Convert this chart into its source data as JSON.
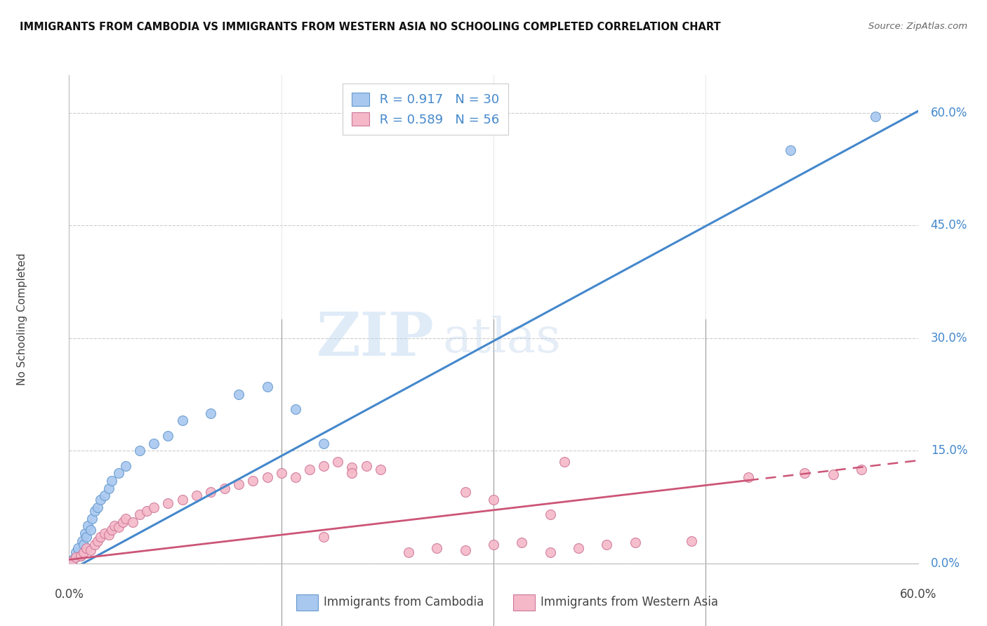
{
  "title": "IMMIGRANTS FROM CAMBODIA VS IMMIGRANTS FROM WESTERN ASIA NO SCHOOLING COMPLETED CORRELATION CHART",
  "source": "Source: ZipAtlas.com",
  "ylabel": "No Schooling Completed",
  "ytick_values": [
    0.0,
    15.0,
    30.0,
    45.0,
    60.0
  ],
  "xlim": [
    0.0,
    60.0
  ],
  "ylim": [
    0.0,
    65.0
  ],
  "cambodia_color": "#a8c8f0",
  "cambodia_edge": "#6699cc",
  "western_asia_color": "#f5b8c8",
  "western_asia_edge": "#cc7799",
  "blue_line_color": "#4488cc",
  "pink_line_color": "#cc5577",
  "legend_R_cambodia": "R = 0.917",
  "legend_N_cambodia": "N = 30",
  "legend_R_western": "R = 0.589",
  "legend_N_western": "N = 56",
  "watermark_zip": "ZIP",
  "watermark_atlas": "atlas",
  "cam_slope": 1.02,
  "cam_intercept": -1.0,
  "wa_slope": 0.22,
  "wa_intercept": 0.5,
  "wa_solid_end": 48.0,
  "cambodia_x": [
    0.3,
    0.5,
    0.6,
    0.8,
    0.9,
    1.0,
    1.1,
    1.2,
    1.3,
    1.5,
    1.6,
    1.8,
    2.0,
    2.2,
    2.5,
    2.8,
    3.0,
    3.5,
    4.0,
    5.0,
    6.0,
    7.0,
    8.0,
    10.0,
    12.0,
    14.0,
    16.0,
    18.0,
    51.0,
    57.0
  ],
  "cambodia_y": [
    0.5,
    1.5,
    2.0,
    1.0,
    3.0,
    2.5,
    4.0,
    3.5,
    5.0,
    4.5,
    6.0,
    7.0,
    7.5,
    8.5,
    9.0,
    10.0,
    11.0,
    12.0,
    13.0,
    15.0,
    16.0,
    17.0,
    19.0,
    20.0,
    22.5,
    23.5,
    20.5,
    16.0,
    55.0,
    59.5
  ],
  "western_x": [
    0.2,
    0.5,
    0.8,
    1.0,
    1.2,
    1.5,
    1.8,
    2.0,
    2.2,
    2.5,
    2.8,
    3.0,
    3.2,
    3.5,
    3.8,
    4.0,
    4.5,
    5.0,
    5.5,
    6.0,
    7.0,
    8.0,
    9.0,
    10.0,
    11.0,
    12.0,
    13.0,
    14.0,
    15.0,
    16.0,
    17.0,
    18.0,
    19.0,
    20.0,
    21.0,
    22.0,
    24.0,
    26.0,
    28.0,
    30.0,
    32.0,
    34.0,
    36.0,
    38.0,
    40.0,
    44.0,
    48.0,
    52.0,
    54.0,
    56.0,
    28.0,
    30.0,
    34.0,
    35.0,
    18.0,
    20.0
  ],
  "western_y": [
    0.3,
    0.8,
    1.0,
    1.5,
    2.0,
    1.8,
    2.5,
    3.0,
    3.5,
    4.0,
    3.8,
    4.5,
    5.0,
    4.8,
    5.5,
    6.0,
    5.5,
    6.5,
    7.0,
    7.5,
    8.0,
    8.5,
    9.0,
    9.5,
    10.0,
    10.5,
    11.0,
    11.5,
    12.0,
    11.5,
    12.5,
    13.0,
    13.5,
    12.8,
    13.0,
    12.5,
    1.5,
    2.0,
    1.8,
    2.5,
    2.8,
    1.5,
    2.0,
    2.5,
    2.8,
    3.0,
    11.5,
    12.0,
    11.8,
    12.5,
    9.5,
    8.5,
    6.5,
    13.5,
    3.5,
    12.0
  ]
}
